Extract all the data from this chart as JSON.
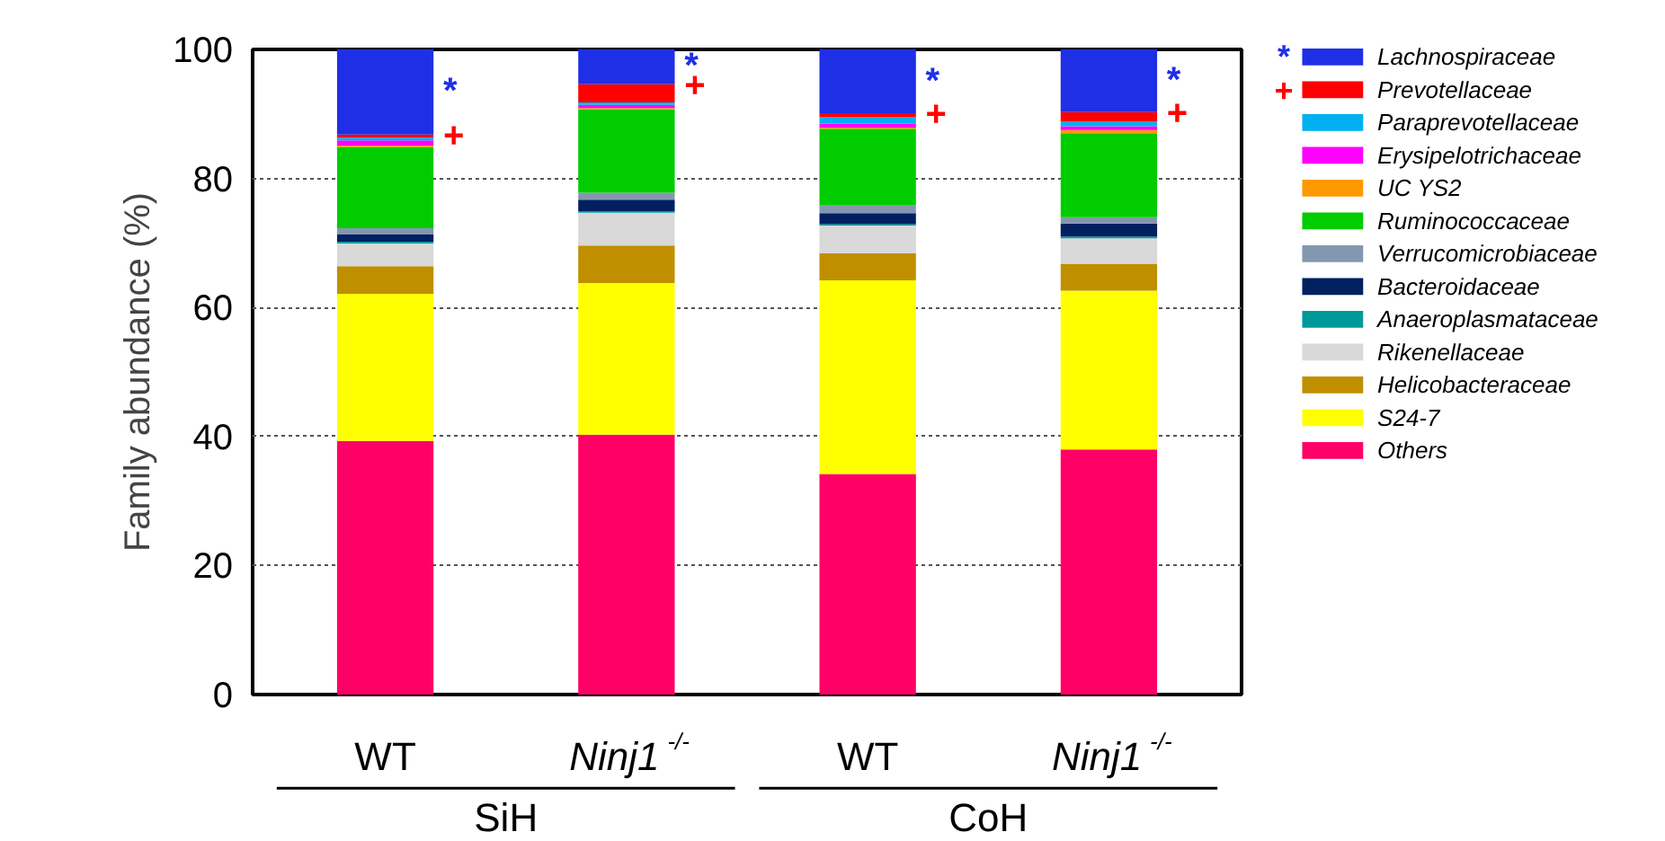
{
  "chart_data": {
    "type": "bar",
    "stacked": true,
    "ylabel": "Family abundance (%)",
    "categories": [
      "WT",
      "Ninj1$^{-/-}$",
      "WT",
      "Ninj1$^{-/-}$"
    ],
    "series": [
      {
        "name": "Others",
        "color": "#ff0066",
        "values": [
          39.3,
          40.3,
          34.2,
          38.0
        ]
      },
      {
        "name": "S24-7",
        "color": "#ffff00",
        "values": [
          22.8,
          23.5,
          30.0,
          24.6
        ]
      },
      {
        "name": "Helicobacteraceae",
        "color": "#bf8f00",
        "values": [
          4.3,
          5.8,
          4.2,
          4.2
        ]
      },
      {
        "name": "Rikenellaceae",
        "color": "#d9d9d9",
        "values": [
          3.5,
          5.1,
          4.3,
          3.9
        ]
      },
      {
        "name": "Anaeroplasmataceae",
        "color": "#009999",
        "values": [
          0.3,
          0.2,
          0.2,
          0.3
        ]
      },
      {
        "name": "Bacteroidaceae",
        "color": "#002060",
        "values": [
          1.1,
          1.8,
          1.7,
          2.0
        ]
      },
      {
        "name": "Verrucomicrobiaceae",
        "color": "#8497b0",
        "values": [
          1.0,
          1.1,
          1.2,
          1.0
        ]
      },
      {
        "name": "Ruminococcaceae",
        "color": "#00cc00",
        "values": [
          12.6,
          12.9,
          11.9,
          13.0
        ]
      },
      {
        "name": "UC YS2",
        "color": "#ff9900",
        "values": [
          0.2,
          0.2,
          0.2,
          0.5
        ]
      },
      {
        "name": "Erysipelotrichaceae",
        "color": "#ff00ff",
        "values": [
          0.8,
          0.5,
          0.6,
          0.6
        ]
      },
      {
        "name": "Paraprevotellaceae",
        "color": "#00b0f0",
        "values": [
          0.4,
          0.4,
          1.0,
          0.7
        ]
      },
      {
        "name": "Prevotellaceae",
        "color": "#ff0000",
        "values": [
          0.5,
          2.8,
          0.6,
          1.5
        ]
      },
      {
        "name": "Lachnospiraceae",
        "color": "#1f2fe6",
        "values": [
          13.2,
          5.4,
          9.9,
          9.7
        ]
      }
    ],
    "ylim": [
      0,
      100
    ],
    "yticks": [
      0,
      20,
      40,
      60,
      80,
      100
    ],
    "grid": "y",
    "legend": "right",
    "annotations": [
      "*",
      "+",
      "SiH",
      "CoH"
    ]
  }
}
